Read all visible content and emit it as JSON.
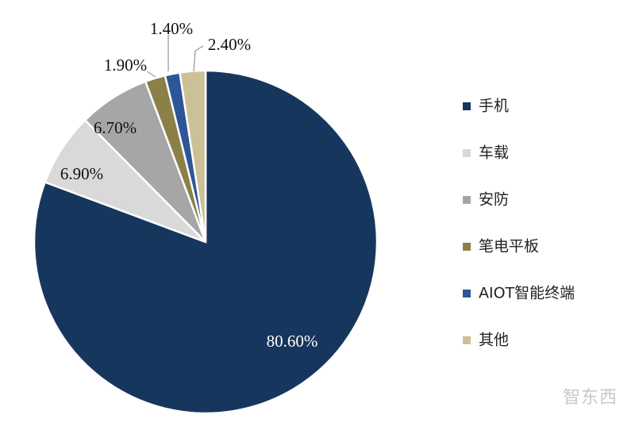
{
  "chart_data": {
    "type": "pie",
    "unit": "%",
    "slices": [
      {
        "name": "手机",
        "value": 80.6,
        "label": "80.60%",
        "color": "#17365d"
      },
      {
        "name": "车载",
        "value": 6.9,
        "label": "6.90%",
        "color": "#d9d9d9"
      },
      {
        "name": "安防",
        "value": 6.7,
        "label": "6.70%",
        "color": "#a6a6a6"
      },
      {
        "name": "笔电平板",
        "value": 1.9,
        "label": "1.90%",
        "color": "#8b8048"
      },
      {
        "name": "AIOT智能终端",
        "value": 1.4,
        "label": "1.40%",
        "color": "#2e5597"
      },
      {
        "name": "其他",
        "value": 2.4,
        "label": "2.40%",
        "color": "#ccc196"
      }
    ],
    "legend_position": "right",
    "start_angle": "12 o'clock",
    "direction": "clockwise, starting with 手机"
  },
  "watermark": "智东西"
}
